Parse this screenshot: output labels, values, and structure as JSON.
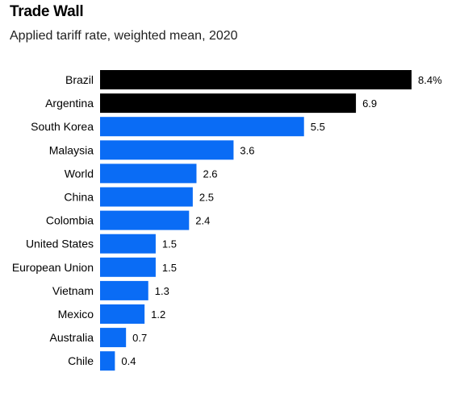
{
  "chart_data": {
    "type": "bar",
    "orientation": "horizontal",
    "title": "Trade Wall",
    "subtitle": "Applied tariff rate, weighted mean, 2020",
    "categories": [
      "Brazil",
      "Argentina",
      "South Korea",
      "Malaysia",
      "World",
      "China",
      "Colombia",
      "United States",
      "European Union",
      "Vietnam",
      "Mexico",
      "Australia",
      "Chile"
    ],
    "values": [
      8.4,
      6.9,
      5.5,
      3.6,
      2.6,
      2.5,
      2.4,
      1.5,
      1.5,
      1.3,
      1.2,
      0.7,
      0.4
    ],
    "value_labels": [
      "8.4%",
      "6.9",
      "5.5",
      "3.6",
      "2.6",
      "2.5",
      "2.4",
      "1.5",
      "1.5",
      "1.3",
      "1.2",
      "0.7",
      "0.4"
    ],
    "highlighted": [
      "Brazil",
      "Argentina"
    ],
    "xlim": [
      0,
      8.4
    ],
    "grid": false,
    "legend": "none",
    "colors": {
      "highlight": "#000000",
      "default": "#0a6cf5"
    }
  }
}
